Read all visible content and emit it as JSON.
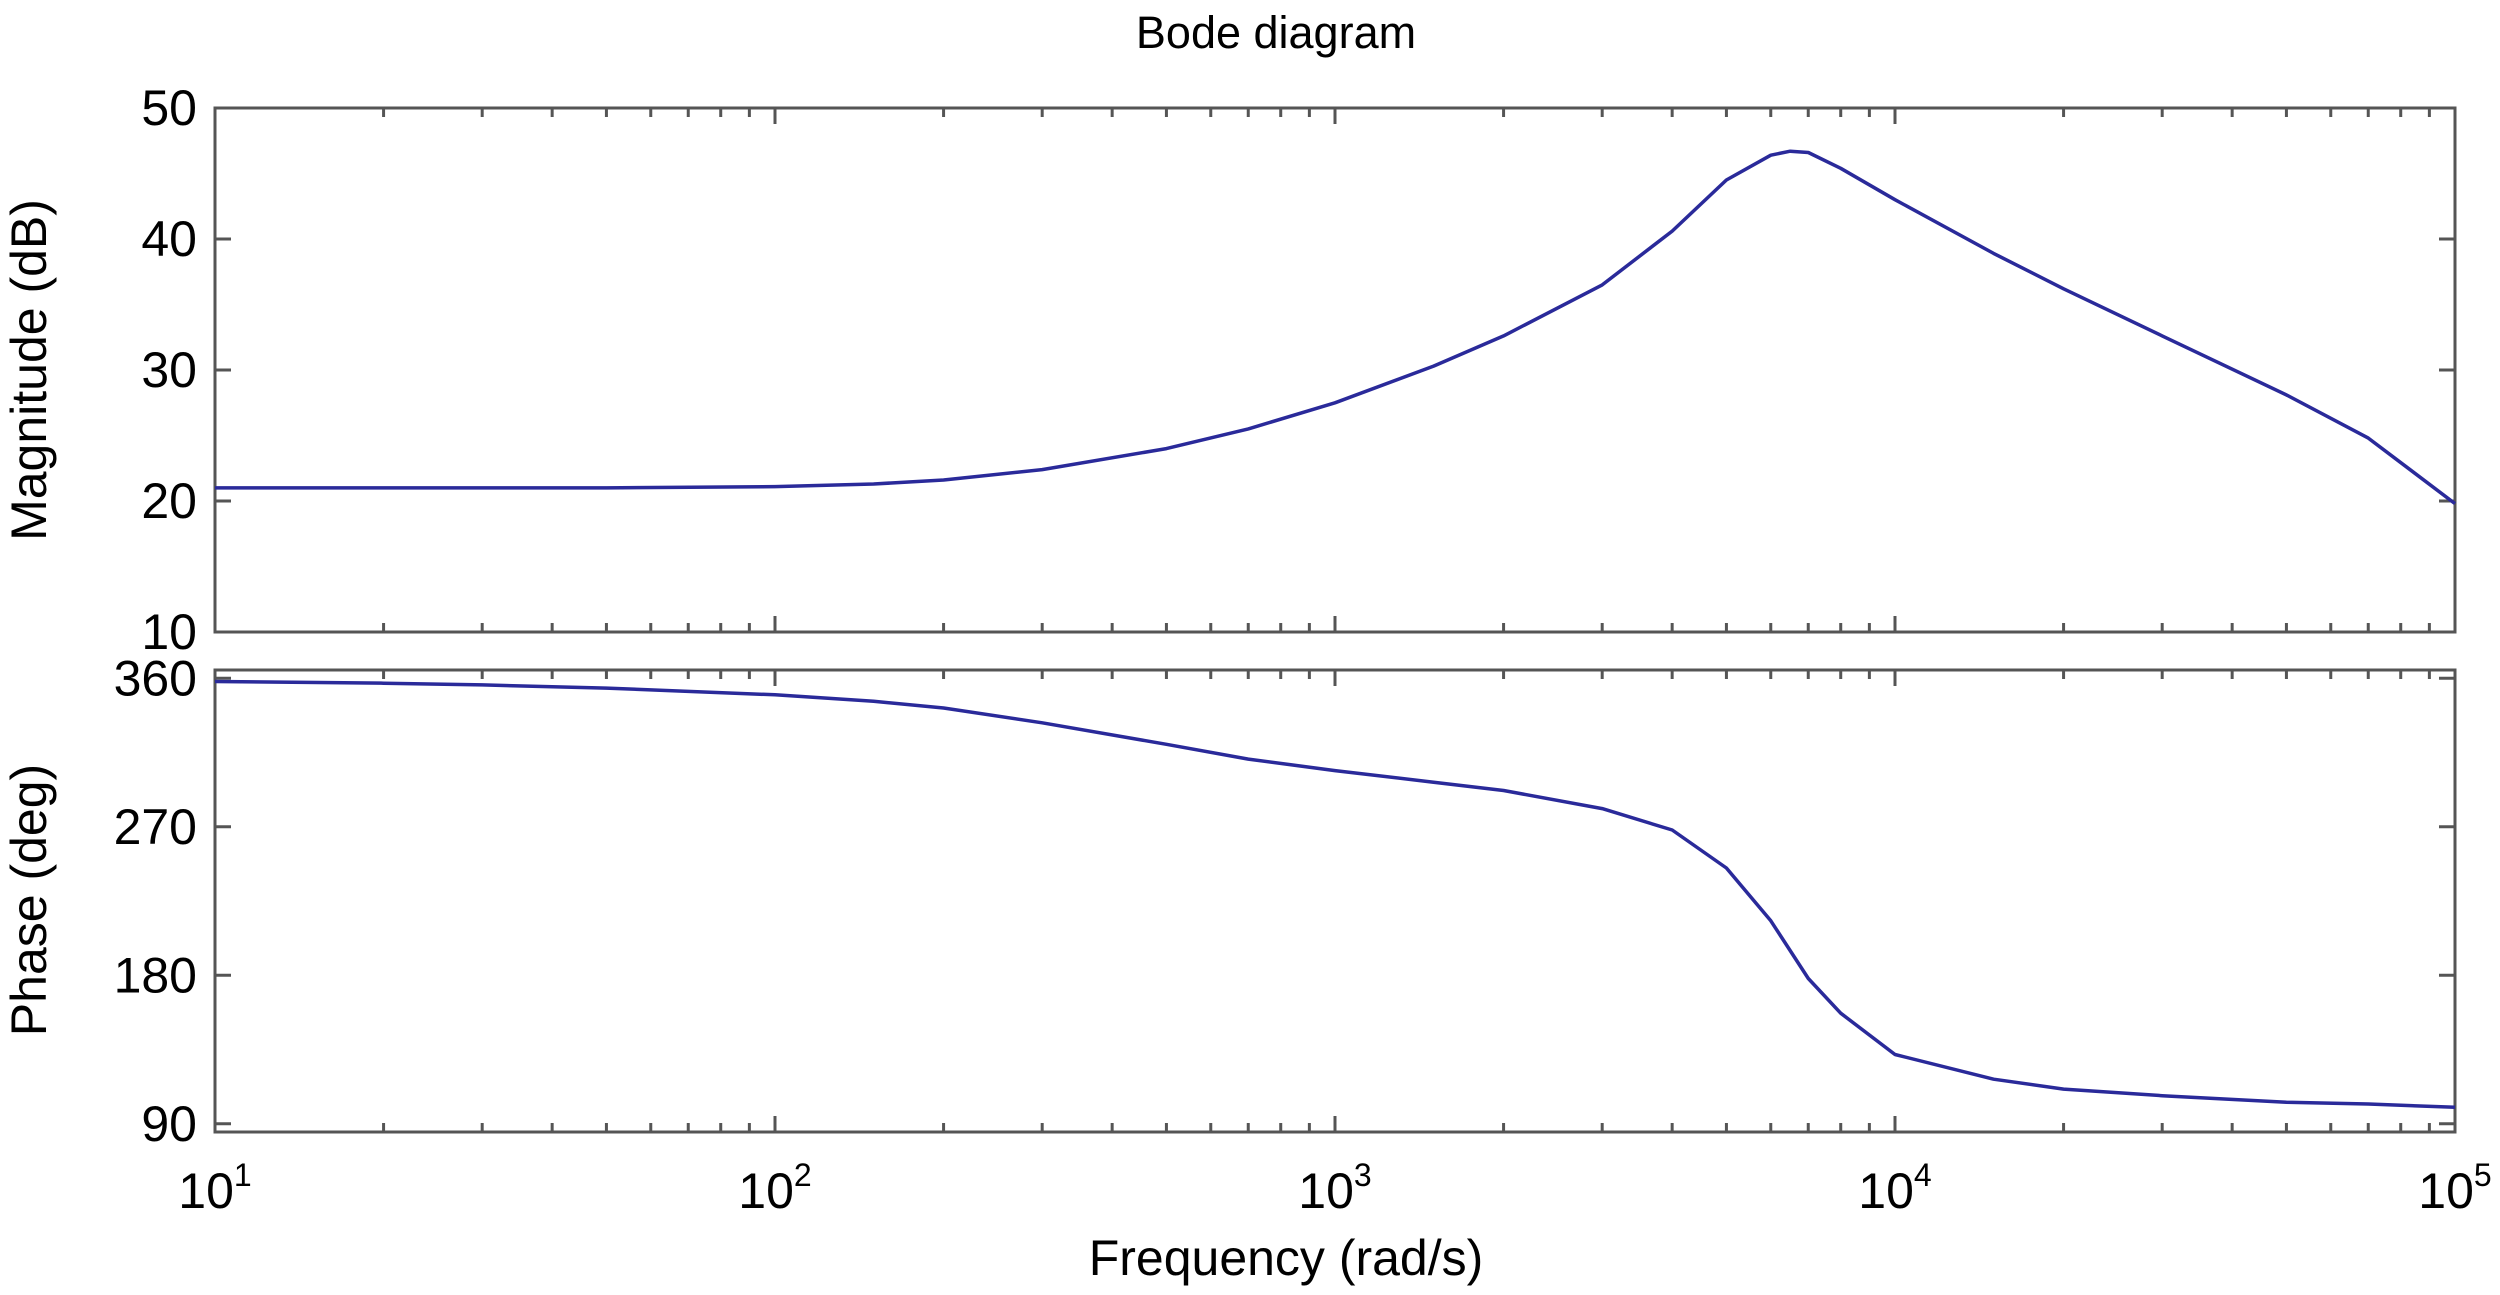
{
  "chart_data": [
    {
      "type": "line",
      "title": "Bode diagram",
      "ylabel": "Magnitude (dB)",
      "xscale": "log",
      "xlim": [
        10,
        100000
      ],
      "ylim": [
        10,
        50
      ],
      "yticks": [
        10,
        20,
        30,
        40,
        50
      ],
      "grid": false,
      "series": [
        {
          "color": "#2a2a9a",
          "x": [
            10,
            20,
            50,
            100,
            150,
            200,
            300,
            500,
            700,
            1000,
            1500,
            2000,
            3000,
            4000,
            5000,
            6000,
            6500,
            7000,
            8000,
            10000,
            15000,
            20000,
            30000,
            50000,
            70000,
            100000
          ],
          "y": [
            21,
            21,
            21,
            21.1,
            21.3,
            21.6,
            22.4,
            24,
            25.5,
            27.5,
            30.3,
            32.6,
            36.5,
            40.6,
            44.5,
            46.4,
            46.7,
            46.6,
            45.4,
            43,
            38.9,
            36.2,
            32.6,
            28.1,
            24.8,
            19.8
          ]
        }
      ]
    },
    {
      "type": "line",
      "ylabel": "Phase (deg)",
      "xlabel": "Frequency (rad/s)",
      "xscale": "log",
      "xlim": [
        10,
        100000
      ],
      "ylim": [
        85,
        365
      ],
      "yticks": [
        90,
        180,
        270,
        360
      ],
      "xticks": [
        {
          "base": "10",
          "exp": "1",
          "value": 10
        },
        {
          "base": "10",
          "exp": "2",
          "value": 100
        },
        {
          "base": "10",
          "exp": "3",
          "value": 1000
        },
        {
          "base": "10",
          "exp": "4",
          "value": 10000
        },
        {
          "base": "10",
          "exp": "5",
          "value": 100000
        }
      ],
      "grid": false,
      "series": [
        {
          "color": "#2a2a9a",
          "x": [
            10,
            20,
            30,
            50,
            100,
            150,
            200,
            300,
            500,
            700,
            1000,
            1500,
            2000,
            3000,
            4000,
            5000,
            6000,
            7000,
            8000,
            10000,
            15000,
            20000,
            30000,
            50000,
            70000,
            100000
          ],
          "y": [
            358,
            357,
            356,
            354,
            350,
            346,
            342,
            333,
            320,
            311,
            304,
            297,
            292,
            281,
            268,
            245,
            213,
            178,
            157,
            132,
            117,
            111,
            107,
            103,
            102,
            100
          ]
        }
      ]
    }
  ]
}
